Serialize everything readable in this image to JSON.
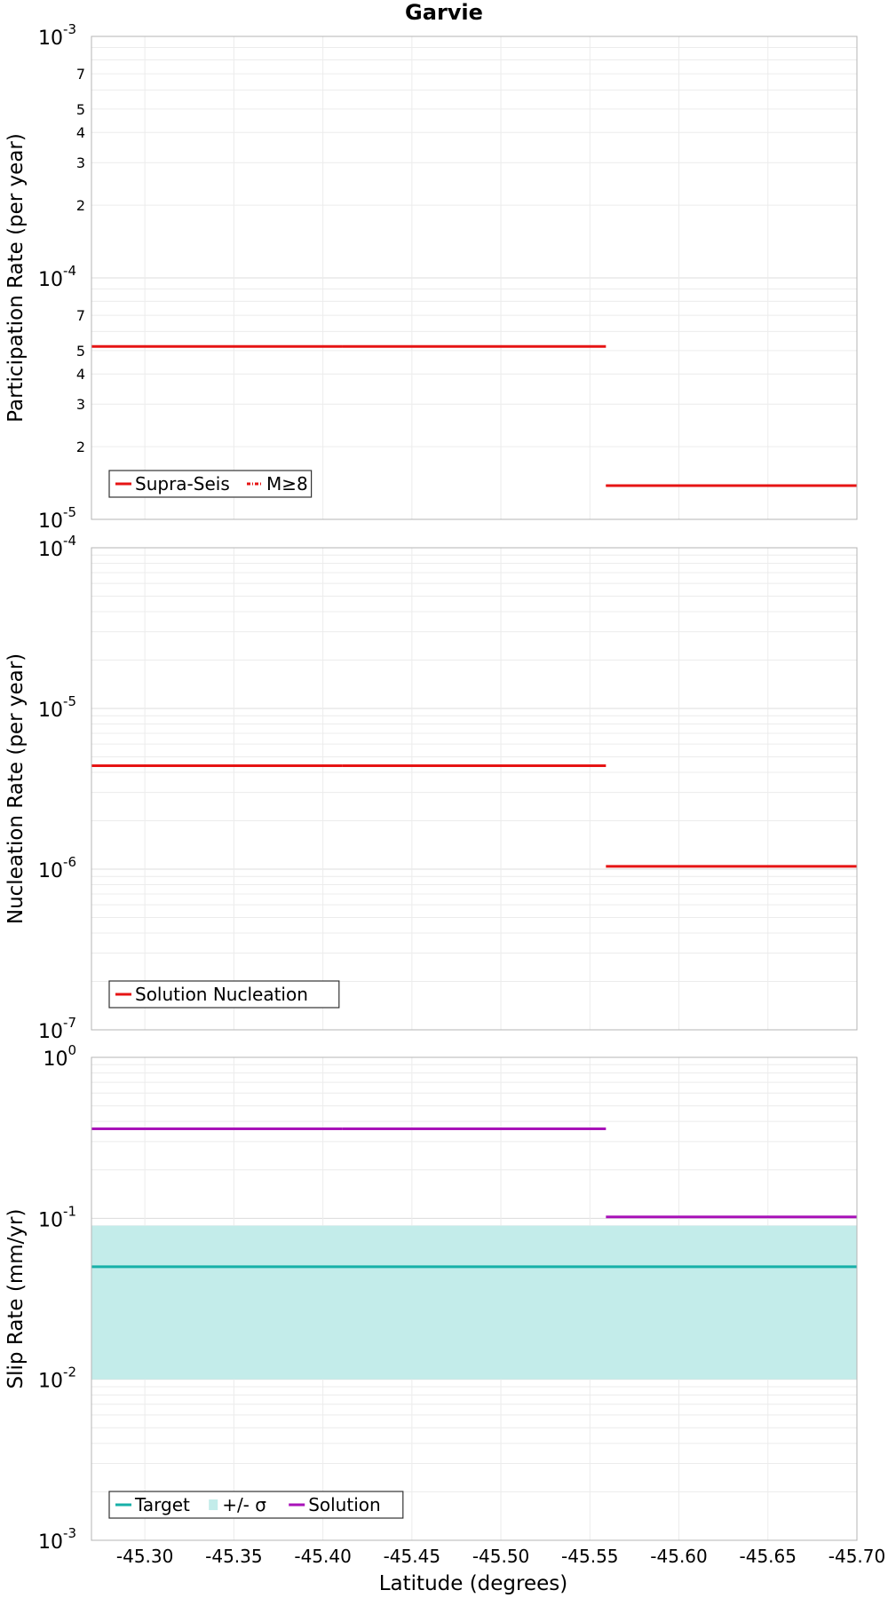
{
  "title": "Garvie",
  "xlabel": "Latitude (degrees)",
  "x_ticks": [
    "-45.30",
    "-45.35",
    "-45.40",
    "-45.45",
    "-45.50",
    "-45.55",
    "-45.60",
    "-45.65",
    "-45.70"
  ],
  "chart_data": [
    {
      "type": "line",
      "title": "Garvie",
      "xlabel": "",
      "ylabel": "Participation Rate (per year)",
      "xlim": [
        -45.27,
        -45.7
      ],
      "x_reversed": true,
      "ylim": [
        1e-05,
        0.001
      ],
      "yscale": "log",
      "y_ticks_major": [
        "10",
        "10"
      ],
      "grid": true,
      "legend_position": "bottom-left",
      "legend": [
        {
          "label": "Supra-Seis",
          "color": "#e61414",
          "style": "solid"
        },
        {
          "label": "M≥8",
          "color": "#e61414",
          "style": "dashdot"
        }
      ],
      "series": [
        {
          "name": "Supra-Seis",
          "color": "#e61414",
          "style": "solid",
          "segments": [
            {
              "x": [
                -45.27,
                -45.411
              ],
              "y": 5.2e-05
            },
            {
              "x": [
                -45.411,
                -45.559
              ],
              "y": 5.2e-05
            },
            {
              "x": [
                -45.559,
                -45.7
              ],
              "y": 1.38e-05
            }
          ]
        },
        {
          "name": "M≥8",
          "color": "#e61414",
          "style": "dashdot",
          "segments": [
            {
              "x": [
                -45.27,
                -45.411
              ],
              "y": 5.2e-05
            },
            {
              "x": [
                -45.411,
                -45.559
              ],
              "y": 5.2e-05
            },
            {
              "x": [
                -45.559,
                -45.7
              ],
              "y": 1.38e-05
            }
          ]
        }
      ]
    },
    {
      "type": "line",
      "xlabel": "",
      "ylabel": "Nucleation Rate (per year)",
      "xlim": [
        -45.27,
        -45.7
      ],
      "x_reversed": true,
      "ylim": [
        1e-07,
        0.0001
      ],
      "yscale": "log",
      "grid": true,
      "legend_position": "bottom-left",
      "legend": [
        {
          "label": "Solution Nucleation",
          "color": "#e61414",
          "style": "solid"
        }
      ],
      "series": [
        {
          "name": "Solution Nucleation",
          "color": "#e61414",
          "style": "solid",
          "segments": [
            {
              "x": [
                -45.27,
                -45.411
              ],
              "y": 4.4e-06
            },
            {
              "x": [
                -45.411,
                -45.559
              ],
              "y": 4.4e-06
            },
            {
              "x": [
                -45.559,
                -45.7
              ],
              "y": 1.04e-06
            }
          ]
        }
      ]
    },
    {
      "type": "line",
      "xlabel": "Latitude (degrees)",
      "ylabel": "Slip Rate (mm/yr)",
      "xlim": [
        -45.27,
        -45.7
      ],
      "x_reversed": true,
      "ylim": [
        0.001,
        1
      ],
      "yscale": "log",
      "grid": true,
      "legend_position": "bottom-left",
      "legend": [
        {
          "label": "Target",
          "color": "#17b0a8",
          "style": "solid"
        },
        {
          "label": "+/- σ",
          "color": "#c3ecea",
          "style": "band"
        },
        {
          "label": "Solution",
          "color": "#a812b8",
          "style": "solid"
        }
      ],
      "bands": [
        {
          "name": "+/- σ",
          "color": "#c3ecea",
          "x": [
            -45.27,
            -45.7
          ],
          "y_low": 0.01,
          "y_high": 0.09
        }
      ],
      "series": [
        {
          "name": "Target",
          "color": "#17b0a8",
          "style": "solid",
          "segments": [
            {
              "x": [
                -45.27,
                -45.7
              ],
              "y": 0.05
            }
          ]
        },
        {
          "name": "Solution",
          "color": "#a812b8",
          "style": "solid",
          "segments": [
            {
              "x": [
                -45.27,
                -45.411
              ],
              "y": 0.36
            },
            {
              "x": [
                -45.411,
                -45.559
              ],
              "y": 0.36
            },
            {
              "x": [
                -45.559,
                -45.7
              ],
              "y": 0.102
            }
          ]
        }
      ]
    }
  ]
}
